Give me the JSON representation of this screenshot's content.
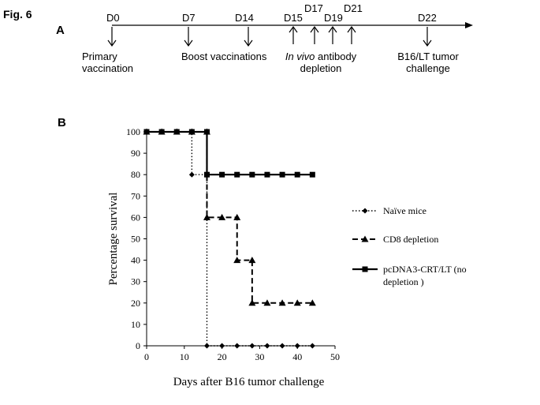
{
  "figure": {
    "label": "Fig. 6"
  },
  "panel_a": {
    "label": "A",
    "events": [
      {
        "day": "D0",
        "note_lines": [
          "Primary",
          "vaccination"
        ]
      },
      {
        "day": "D7",
        "note_lines": []
      },
      {
        "day": "D14",
        "note_lines": []
      },
      {
        "day": "D15",
        "note_lines": []
      },
      {
        "day": "D17",
        "note_lines": []
      },
      {
        "day": "D19",
        "note_lines": []
      },
      {
        "day": "D21",
        "note_lines": []
      },
      {
        "day": "D22",
        "note_lines": [
          "B16/LT tumor",
          "challenge"
        ]
      }
    ],
    "boost_note": "Boost vaccinations",
    "depletion_note": {
      "italic": "In vivo",
      "rest": " antibody",
      "line2": "depletion"
    }
  },
  "panel_b": {
    "label": "B"
  },
  "chart_data": {
    "type": "line",
    "title": "",
    "xlabel": "Days after B16 tumor challenge",
    "ylabel": "Percentage survival",
    "xlim": [
      0,
      50
    ],
    "ylim": [
      0,
      100
    ],
    "xticks": [
      0,
      10,
      20,
      30,
      40,
      50
    ],
    "yticks": [
      0,
      10,
      20,
      30,
      40,
      50,
      60,
      70,
      80,
      90,
      100
    ],
    "grid": false,
    "legend_position": "right",
    "series": [
      {
        "name": "Naïve mice",
        "line_style": "dotted",
        "marker": "diamond",
        "x": [
          0,
          4,
          8,
          12,
          12,
          16,
          16,
          20,
          24,
          28,
          32,
          36,
          40,
          44
        ],
        "y": [
          100,
          100,
          100,
          100,
          80,
          80,
          0,
          0,
          0,
          0,
          0,
          0,
          0,
          0
        ]
      },
      {
        "name": "CD8 depletion",
        "line_style": "dashed",
        "marker": "triangle",
        "x": [
          0,
          4,
          8,
          12,
          16,
          16,
          20,
          24,
          24,
          28,
          28,
          32,
          36,
          40,
          44
        ],
        "y": [
          100,
          100,
          100,
          100,
          100,
          60,
          60,
          60,
          40,
          40,
          20,
          20,
          20,
          20,
          20
        ]
      },
      {
        "name": "pcDNA3-CRT/LT (no depletion )",
        "legend_lines": [
          "pcDNA3-CRT/LT (no",
          "depletion )"
        ],
        "line_style": "solid",
        "marker": "square",
        "x": [
          0,
          4,
          8,
          12,
          16,
          16,
          20,
          24,
          28,
          32,
          36,
          40,
          44
        ],
        "y": [
          100,
          100,
          100,
          100,
          100,
          80,
          80,
          80,
          80,
          80,
          80,
          80,
          80
        ]
      }
    ]
  }
}
